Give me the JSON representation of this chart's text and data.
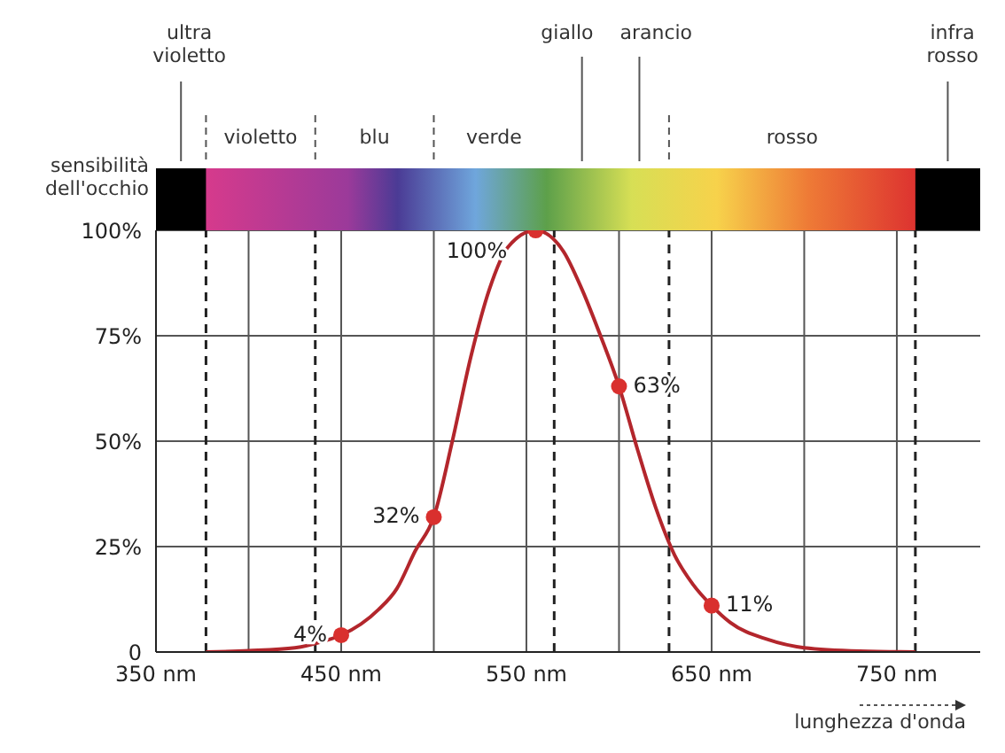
{
  "chart_data": {
    "type": "line",
    "ylabel": "sensibilità dell'occhio",
    "xlabel": "lunghezza d'onda",
    "xlim": [
      350,
      795
    ],
    "xticks": [
      {
        "value": 350,
        "label": "350 nm"
      },
      {
        "value": 400,
        "label": null
      },
      {
        "value": 450,
        "label": "450 nm"
      },
      {
        "value": 500,
        "label": null
      },
      {
        "value": 550,
        "label": "550 nm"
      },
      {
        "value": 600,
        "label": null
      },
      {
        "value": 650,
        "label": "650 nm"
      },
      {
        "value": 700,
        "label": null
      },
      {
        "value": 750,
        "label": "750 nm"
      }
    ],
    "ylim": [
      0,
      100
    ],
    "yticks": [
      {
        "value": 0,
        "label": "0"
      },
      {
        "value": 25,
        "label": "25%"
      },
      {
        "value": 50,
        "label": "50%"
      },
      {
        "value": 75,
        "label": "75%"
      },
      {
        "value": 100,
        "label": "100%"
      }
    ],
    "grid": true,
    "legend": false,
    "series": [
      {
        "type": "line",
        "color": "#b3262c",
        "marker": "none",
        "x": [
          377,
          400,
          425,
          440,
          450,
          470,
          480,
          490,
          500,
          510,
          520,
          530,
          540,
          555,
          570,
          580,
          590,
          600,
          610,
          620,
          630,
          640,
          650,
          660,
          680,
          700,
          730,
          760
        ],
        "values": [
          0,
          0.3,
          1,
          2.5,
          4,
          10,
          15,
          24,
          32,
          50,
          70,
          86,
          96,
          100,
          95,
          86,
          75,
          63,
          48,
          34,
          23,
          16,
          11,
          7,
          3,
          1,
          0.2,
          0
        ]
      },
      {
        "type": "scatter",
        "color": "#d9302e",
        "marker": "circle",
        "x": [
          450,
          500,
          555,
          600,
          650
        ],
        "values": [
          4,
          32,
          100,
          63,
          11
        ],
        "value_labels": [
          "4%",
          "32%",
          "100%",
          "63%",
          "11%"
        ]
      }
    ],
    "ref_lines": [
      {
        "axis": "x",
        "value": 377,
        "line_style": "dashed"
      },
      {
        "axis": "x",
        "value": 436,
        "line_style": "dashed"
      },
      {
        "axis": "x",
        "value": 565,
        "line_style": "dashed"
      },
      {
        "axis": "x",
        "value": 627,
        "line_style": "dashed"
      },
      {
        "axis": "x",
        "value": 760,
        "line_style": "dashed"
      }
    ],
    "annotations": [
      "ultra violetto",
      "violetto",
      "blu",
      "verde",
      "giallo",
      "arancio",
      "rosso",
      "infra rosso"
    ]
  }
}
